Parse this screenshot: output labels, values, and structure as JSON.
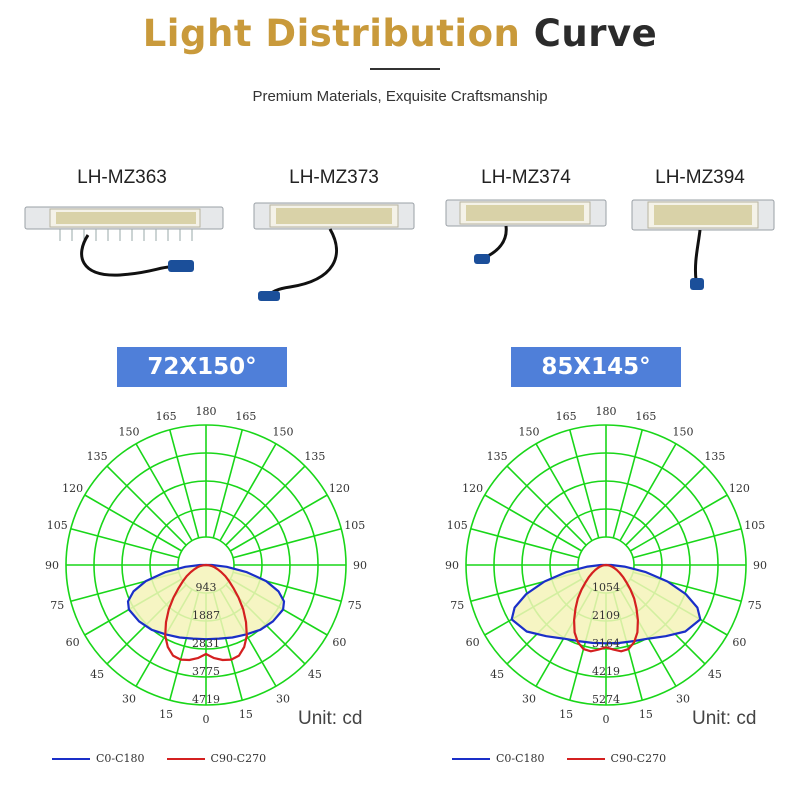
{
  "header": {
    "title_part1": "Light Distribution",
    "title_part2": "Curve",
    "subtitle": "Premium Materials, Exquisite Craftsmanship"
  },
  "models": [
    {
      "label": "LH-MZ363"
    },
    {
      "label": "LH-MZ373"
    },
    {
      "label": "LH-MZ374"
    },
    {
      "label": "LH-MZ394"
    }
  ],
  "colors": {
    "grid": "#19d619",
    "c0": "#1a2fc8",
    "c90": "#d42020",
    "fill": "#f5f3b8",
    "badge": "#4f7fd9",
    "title_gold": "#c99a3b"
  },
  "chart_data": [
    {
      "type": "polar",
      "badge": "72X150°",
      "unit": "Unit: cd",
      "angle_labels": [
        "0",
        "15",
        "30",
        "45",
        "60",
        "75",
        "90",
        "105",
        "120",
        "135",
        "150",
        "165",
        "180",
        "165",
        "150",
        "135",
        "120",
        "105",
        "90",
        "75",
        "60",
        "45",
        "30",
        "15"
      ],
      "radial_ticks": [
        943,
        1887,
        2831,
        3775,
        4719
      ],
      "rmax": 4719,
      "legend": [
        "C0-C180",
        "C90-C270"
      ],
      "series": [
        {
          "name": "C0-C180",
          "angles": [
            0,
            10,
            20,
            30,
            40,
            50,
            60,
            65,
            70,
            75,
            80,
            85,
            90
          ],
          "values": [
            2500,
            2520,
            2600,
            2700,
            2850,
            2950,
            3000,
            2900,
            2600,
            2100,
            1400,
            700,
            200
          ]
        },
        {
          "name": "C90-C270",
          "angles": [
            0,
            5,
            10,
            15,
            20,
            25,
            30,
            35,
            40,
            45,
            50,
            55,
            60,
            65,
            70,
            75,
            80,
            85,
            90
          ],
          "values": [
            3000,
            3150,
            3250,
            3300,
            3250,
            3050,
            2750,
            2350,
            1950,
            1550,
            1200,
            950,
            750,
            560,
            420,
            300,
            200,
            100,
            0
          ]
        }
      ]
    },
    {
      "type": "polar",
      "badge": "85X145°",
      "unit": "Unit: cd",
      "angle_labels": [
        "0",
        "15",
        "30",
        "45",
        "60",
        "75",
        "90",
        "105",
        "120",
        "135",
        "150",
        "165",
        "180",
        "165",
        "150",
        "135",
        "120",
        "105",
        "90",
        "75",
        "60",
        "45",
        "30",
        "15"
      ],
      "radial_ticks": [
        1054,
        2109,
        3164,
        4219,
        5274
      ],
      "rmax": 5274,
      "legend": [
        "C0-C180",
        "C90-C270"
      ],
      "series": [
        {
          "name": "C0-C180",
          "angles": [
            0,
            10,
            20,
            30,
            40,
            50,
            60,
            65,
            70,
            75,
            80,
            85,
            90
          ],
          "values": [
            2950,
            2980,
            3050,
            3200,
            3500,
            3900,
            4100,
            3800,
            3200,
            2400,
            1500,
            700,
            200
          ]
        },
        {
          "name": "C90-C270",
          "angles": [
            0,
            5,
            10,
            15,
            20,
            25,
            30,
            35,
            40,
            45,
            50,
            55,
            60,
            65,
            70,
            75,
            80,
            85,
            90
          ],
          "values": [
            3100,
            3200,
            3300,
            3280,
            3100,
            2800,
            2400,
            2000,
            1650,
            1300,
            1000,
            780,
            600,
            450,
            330,
            230,
            150,
            70,
            0
          ]
        }
      ]
    }
  ]
}
